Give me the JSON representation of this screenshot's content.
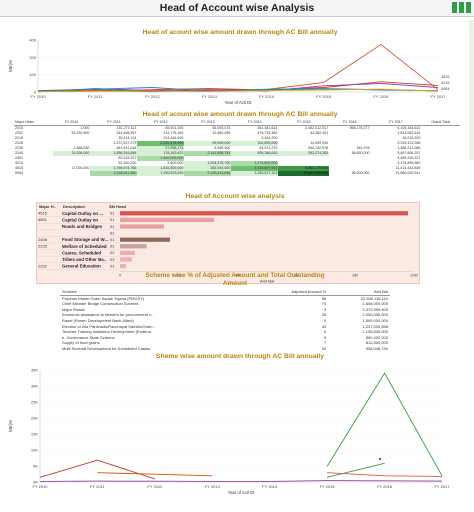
{
  "page": {
    "title": "Head of Account wise Analysis"
  },
  "colors": {
    "accent": "#b8860b",
    "toolbar_icon": "#2e9e4a"
  },
  "charts": {
    "chart1": {
      "title": "Head of acount wise amount drawn through AC Bill annually"
    },
    "table1": {
      "title": "Head of acount  wise  amount drawn through AC Bill annually"
    },
    "chart2": {
      "title": "Head of Account wise analysis",
      "header_major": "Major H..",
      "header_desc": "Description",
      "header_sm": "SM Head",
      "header_desc2": ""
    },
    "table2": {
      "title_line1": "Scheme wise % of Adjusted Amount and Total Outstanding",
      "title_line2": "Amount"
    },
    "chart3": {
      "title": "Sheme wise amount drawn through AC Bill annually"
    }
  },
  "chart_data": [
    {
      "type": "line",
      "title": "Head of acount wise amount drawn through AC Bill annually",
      "x": [
        "FY 2010",
        "FY 2011",
        "FY 2012",
        "FY 2013",
        "FY 2014",
        "FY 2015",
        "FY 2016",
        "FY 2017"
      ],
      "xlabel": "Year of Actl Dt",
      "ylabel": "kBr(M",
      "yticks": [
        "400",
        "200",
        "100",
        "0"
      ],
      "ylim": [
        0,
        460
      ],
      "end_labels": [
        "4515",
        "4216",
        "5064"
      ],
      "series": [
        {
          "color": "#e74c3c",
          "values": [
            5,
            12,
            3,
            18,
            22,
            85,
            420,
            20
          ]
        },
        {
          "color": "#c0392b",
          "values": [
            3,
            8,
            20,
            30,
            18,
            40,
            90,
            58
          ]
        },
        {
          "color": "#8e44ad",
          "values": [
            2,
            30,
            12,
            20,
            10,
            55,
            75,
            40
          ]
        },
        {
          "color": "#16a085",
          "values": [
            8,
            20,
            10,
            6,
            25,
            30,
            20,
            10
          ]
        },
        {
          "color": "#2980b9",
          "values": [
            12,
            25,
            40,
            8,
            15,
            28,
            18,
            12
          ]
        },
        {
          "color": "#f39c12",
          "values": [
            4,
            6,
            8,
            5,
            12,
            18,
            25,
            8
          ]
        }
      ]
    },
    {
      "type": "table",
      "title": "Head of acount  wise  amount drawn through AC Bill annually",
      "columns": [
        "Major Head",
        "FY 2010",
        "FY 2011",
        "FY 2012",
        "FY 2013",
        "FY 2014",
        "FY 2015",
        "FY 2016",
        "FY 2017",
        "Grand Total"
      ],
      "rows": [
        [
          "2015",
          "1,000",
          "151,271,113",
          "85,001,100",
          "55,093,475",
          "361,381,614",
          "2,462,012,517",
          "958,178,377",
          "4,105,164,612"
        ],
        [
          "2202",
          "34,230,500",
          "344,498,957",
          "214,776,160",
          "32,682,289",
          "475,716,380",
          "64,382,401",
          "",
          "1,813,062,615"
        ],
        [
          "2216",
          "",
          "50,114,124",
          "214,446,400",
          "",
          "9,444,200",
          "",
          "",
          "16,015,200"
        ],
        [
          "2225",
          "",
          "2,472,537,079",
          "4,510,478,990",
          "99,695,000",
          "102,890,000",
          "14,559,000",
          "",
          "9,339,413,268"
        ],
        [
          "2235",
          "1,386,530",
          "461,441,018",
          "27,996,174",
          "6,465,400",
          "64,913,270",
          "354,742,976",
          "261,976",
          "1,486,212,086"
        ],
        [
          "2245",
          "79,208,000",
          "1,656,293,895",
          "178,163,623",
          "2,141,908,741",
          "905,186,610",
          "393,274,263",
          "58,650,000",
          "5,467,808,207"
        ],
        [
          "2401",
          "",
          "89,315,327",
          "1,400,000,000",
          "",
          "",
          "",
          "",
          "4,489,315,327"
        ],
        [
          "4210",
          "",
          "92,320,200",
          "3,600,000",
          "1,504,475,760",
          "2,174,500,000",
          "",
          "",
          "3,374,895,960"
        ],
        [
          "4515",
          "17,000,000",
          "1,796,574,766",
          "1,816,409,000",
          "385,944,000",
          "2,129,607,601",
          "5,263,179,000",
          "",
          "11,414,442,846"
        ],
        [
          "5054",
          "",
          "3,448,811,880",
          "1,290,823,830",
          "2,130,413,838",
          "1,289,017,101",
          "19,657,300,000",
          "99,000,000",
          "31,660,002,941"
        ]
      ],
      "shading": [
        [
          0,
          0,
          0,
          0,
          0,
          0,
          0,
          0,
          0
        ],
        [
          0,
          0,
          0,
          0,
          0,
          0,
          0,
          0,
          0
        ],
        [
          0,
          0,
          0,
          0,
          0,
          0,
          0,
          0,
          0
        ],
        [
          0,
          0,
          0,
          3,
          1,
          1,
          0,
          0,
          0
        ],
        [
          0,
          0,
          0,
          1,
          0,
          0,
          0,
          0,
          0
        ],
        [
          0,
          1,
          1,
          1,
          2,
          1,
          1,
          0,
          0
        ],
        [
          0,
          0,
          0,
          2,
          0,
          0,
          0,
          0,
          0
        ],
        [
          0,
          0,
          0,
          0,
          1,
          2,
          0,
          0,
          0
        ],
        [
          0,
          0,
          1,
          1,
          1,
          3,
          4,
          0,
          0
        ],
        [
          0,
          0,
          2,
          1,
          2,
          1,
          5,
          0,
          0
        ]
      ]
    },
    {
      "type": "bar",
      "title": "Head of Account wise analysis",
      "xlabel": "Amt Bal",
      "xticks": [
        "0",
        "2M",
        "4M",
        "6M",
        "8M",
        "10M"
      ],
      "xlim": [
        0,
        10
      ],
      "rows": [
        {
          "major": "4515",
          "desc": "Capital Outlay on ...",
          "sm": "01",
          "value": 9.8,
          "color": "#d9534f"
        },
        {
          "major": "4801",
          "desc": "Capital Outlay on",
          "sm": "01",
          "value": 3.2,
          "color": "#e8a0a0"
        },
        {
          "major": "",
          "desc": "Roads and Bridges",
          "sm": "01",
          "value": 1.5,
          "color": "#e8a0a0"
        },
        {
          "major": "",
          "desc": "",
          "sm": "01",
          "value": 0,
          "color": "#e8a0a0"
        },
        {
          "major": "2408",
          "desc": "Food Storage and W...",
          "sm": "01",
          "value": 1.7,
          "color": "#8b6b5a"
        },
        {
          "major": "2225",
          "desc": "Welfare of Scheduled",
          "sm": "01",
          "value": 0.9,
          "color": "#c9a0a0"
        },
        {
          "major": "",
          "desc": "Castes, Scheduled",
          "sm": "02",
          "value": 0.5,
          "color": "#e8b0b0"
        },
        {
          "major": "",
          "desc": "Tribes and Other Ba..",
          "sm": "03",
          "value": 0.4,
          "color": "#e8b0b0"
        },
        {
          "major": "2202",
          "desc": "General Education",
          "sm": "01",
          "value": 0.2,
          "color": "#e8b0b0"
        }
      ]
    },
    {
      "type": "table",
      "title": "Scheme wise % of Adjusted Amount and Total Outstanding Amount",
      "columns": [
        "Scheme",
        "Adjusted Amount %",
        "Amt Bal"
      ],
      "rows": [
        [
          "Pradhan Mantri Gram Sadak Yojana (PMGSY)",
          "56",
          "22,500,116,110"
        ],
        [
          "Chief Minister Bridge Construction Scheme.",
          "74",
          "2,808,000,000"
        ],
        [
          "Major Roads",
          "3",
          "2,470,999,400"
        ],
        [
          "Economic assistance to farmers for procurement o..",
          "26",
          "2,000,000,000"
        ],
        [
          "Rasef (Rosen Development Bank Aided)",
          "0",
          "1,500,000,000"
        ],
        [
          "Election of Zila Parishads/Panchayat Samitis/Gram..",
          "43",
          "1,237,000,898"
        ],
        [
          "Teacher Training Institution Development (Extrena..",
          "0",
          "1,198,800,000"
        ],
        [
          "e- Governance State Scheme",
          "9",
          "890,492,200"
        ],
        [
          "Supply of food grains",
          "7",
          "812,500,000"
        ],
        [
          "Multi Sectoral Development for Scheduled Castes",
          "34",
          "536,046,794"
        ]
      ]
    },
    {
      "type": "line",
      "title": "Sheme wise amount drawn through AC Bill annually",
      "x": [
        "FY 2010",
        "FY 2011",
        "FY 2012",
        "FY 2013",
        "FY 2014",
        "FY 2015",
        "FY 2016",
        "FY 2017"
      ],
      "xlabel": "Year of Actl Dt",
      "ylabel": "kBr(M",
      "yticks": [
        "35K",
        "30K",
        "25K",
        "20K",
        "15K",
        "10K",
        "5K",
        "0K"
      ],
      "ylim": [
        0,
        36000
      ],
      "series": [
        {
          "color": "#c0392b",
          "values": [
            1500,
            7000,
            1000,
            null,
            null,
            null,
            null,
            null
          ]
        },
        {
          "color": "#2ea043",
          "values": [
            null,
            null,
            null,
            null,
            null,
            5000,
            35000,
            2000
          ]
        },
        {
          "color": "#2ea043",
          "values": [
            null,
            null,
            null,
            null,
            null,
            1500,
            6000,
            null
          ]
        },
        {
          "color": "#d35400",
          "values": [
            null,
            3000,
            2500,
            2000,
            null,
            null,
            null,
            null
          ]
        },
        {
          "color": "#e74c3c",
          "values": [
            null,
            null,
            null,
            null,
            null,
            3000,
            2000,
            1800
          ]
        },
        {
          "color": "#8e44ad",
          "values": [
            200,
            300,
            250,
            180,
            200,
            450,
            380,
            300
          ]
        }
      ]
    }
  ]
}
